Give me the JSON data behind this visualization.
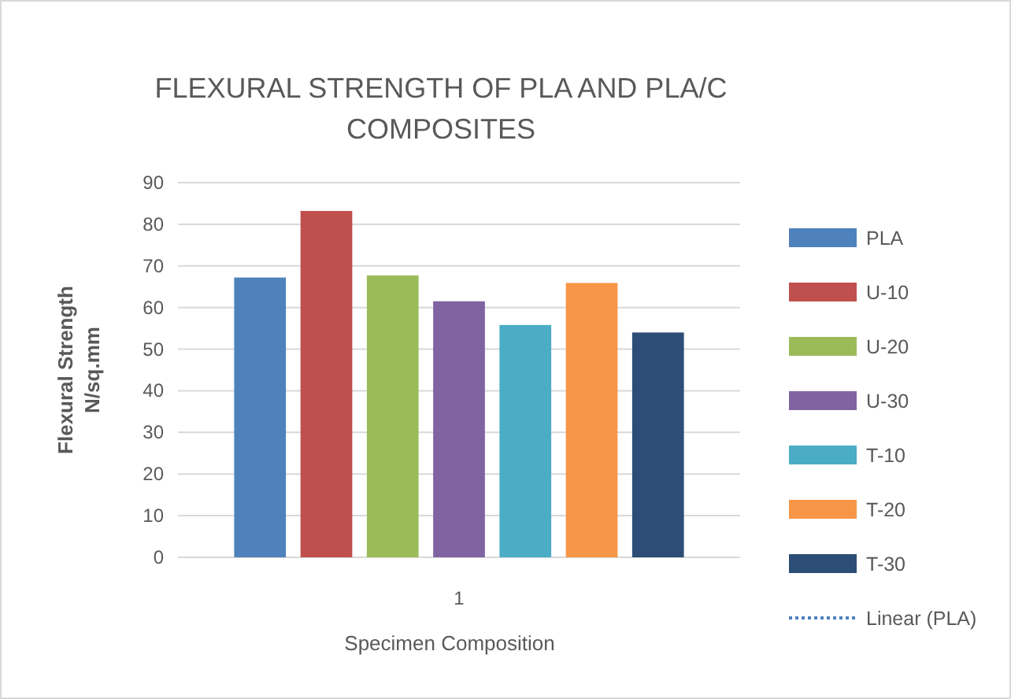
{
  "chart_data": {
    "type": "bar",
    "title": "FLEXURAL STRENGTH OF PLA AND PLA/C COMPOSITES",
    "xlabel": "Specimen Composition",
    "ylabel": "Flexural Strength N/sq.mm",
    "categories": [
      "1"
    ],
    "ylim": [
      0,
      90
    ],
    "yticks": [
      0,
      10,
      20,
      30,
      40,
      50,
      60,
      70,
      80,
      90
    ],
    "grid": "y",
    "legend": "right",
    "series": [
      {
        "name": "PLA",
        "color": "#4f81bd",
        "values": [
          67.2
        ]
      },
      {
        "name": "U-10",
        "color": "#c0504d",
        "values": [
          83.2
        ]
      },
      {
        "name": "U-20",
        "color": "#9bbb59",
        "values": [
          67.7
        ]
      },
      {
        "name": "U-30",
        "color": "#8064a2",
        "values": [
          61.5
        ]
      },
      {
        "name": "T-10",
        "color": "#4bacc6",
        "values": [
          55.8
        ]
      },
      {
        "name": "T-20",
        "color": "#f79646",
        "values": [
          65.9
        ]
      },
      {
        "name": "T-30",
        "color": "#2c4d75",
        "values": [
          54
        ]
      },
      {
        "name": "Linear (PLA)",
        "type": "line",
        "line_style": "dotted",
        "color": "#4f81bd",
        "values": [
          null
        ]
      }
    ]
  }
}
